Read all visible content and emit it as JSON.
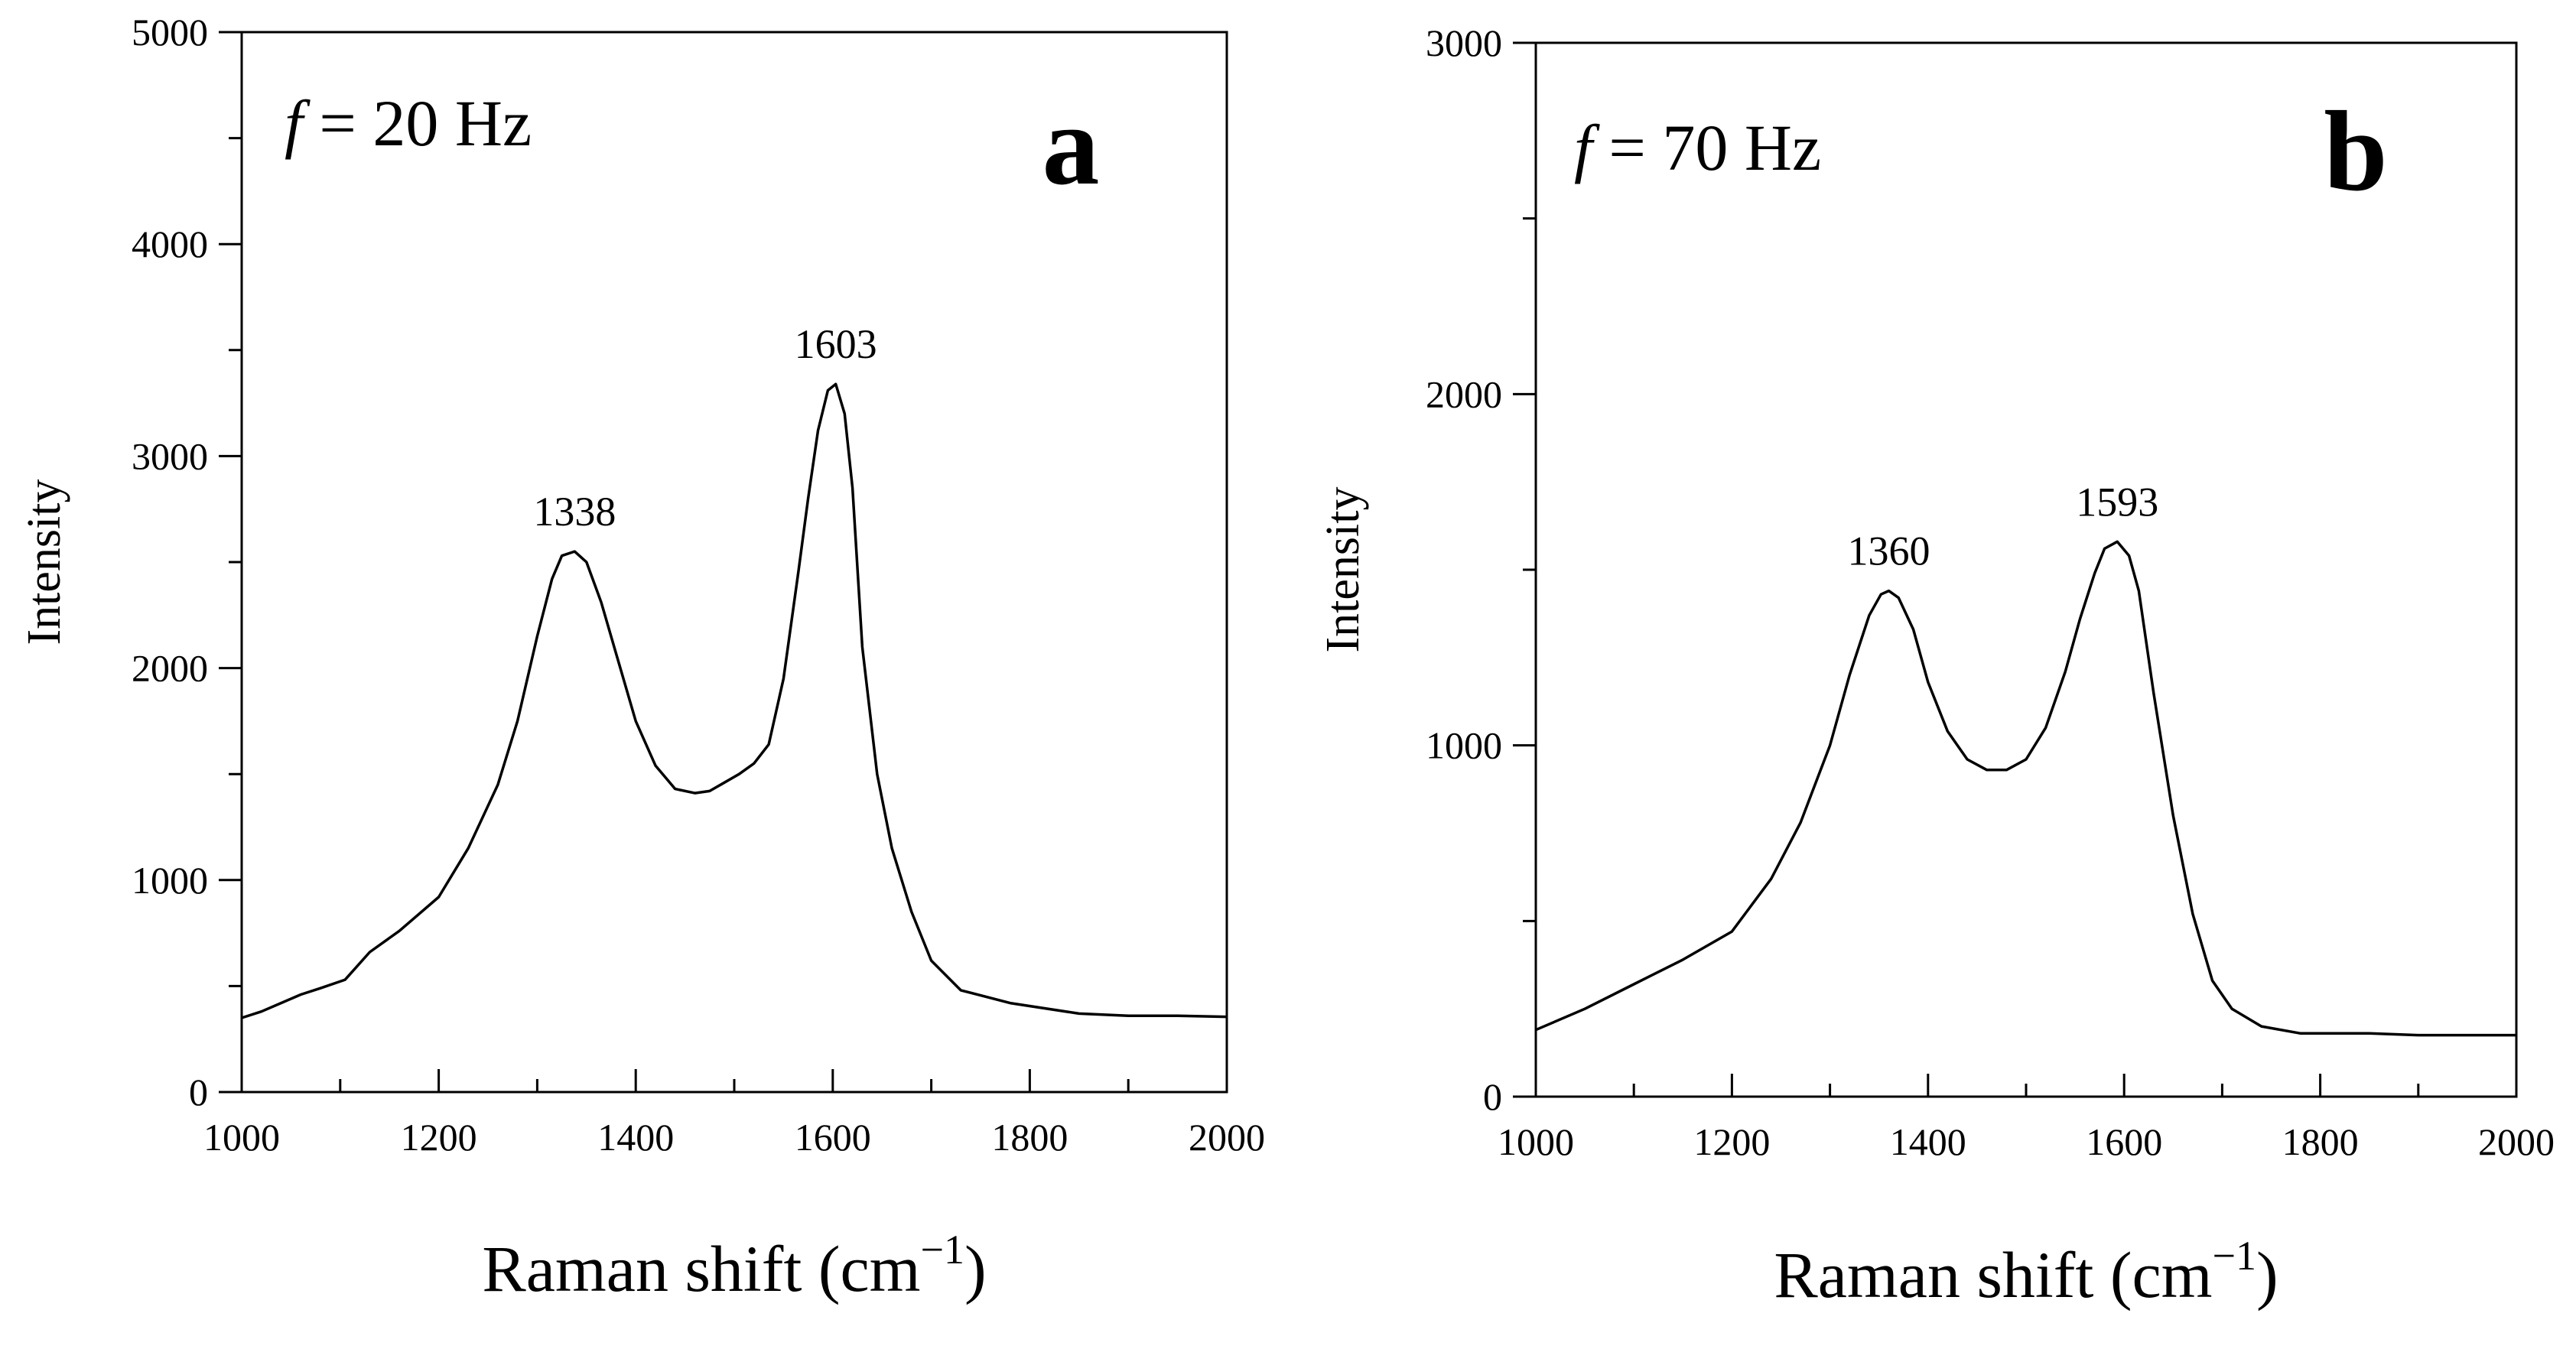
{
  "chart_data": [
    {
      "type": "line",
      "panel": "a",
      "annotation": {
        "italic": "f",
        "rest": " = 20 Hz"
      },
      "xlabel": "Raman shift (cm",
      "xlabel_sup": "−1",
      "xlabel_close": ")",
      "ylabel": "Intensity",
      "xlim": [
        1000,
        2000
      ],
      "ylim": [
        0,
        5000
      ],
      "xticks": [
        1000,
        1200,
        1400,
        1600,
        1800,
        2000
      ],
      "yticks": [
        0,
        1000,
        2000,
        3000,
        4000,
        5000
      ],
      "peaks": [
        {
          "x": 1338,
          "y": 2550,
          "label": "1338"
        },
        {
          "x": 1603,
          "y": 3340,
          "label": "1603"
        }
      ],
      "series": [
        {
          "name": "spectrum",
          "x": [
            1000,
            1020,
            1040,
            1060,
            1080,
            1105,
            1130,
            1160,
            1200,
            1230,
            1260,
            1280,
            1300,
            1315,
            1325,
            1338,
            1350,
            1365,
            1380,
            1400,
            1420,
            1440,
            1460,
            1475,
            1490,
            1505,
            1520,
            1535,
            1550,
            1565,
            1575,
            1585,
            1595,
            1603,
            1612,
            1620,
            1630,
            1645,
            1660,
            1680,
            1700,
            1730,
            1780,
            1850,
            1900,
            1950,
            2000
          ],
          "y": [
            350,
            380,
            420,
            460,
            490,
            530,
            660,
            760,
            920,
            1150,
            1450,
            1750,
            2150,
            2420,
            2530,
            2550,
            2500,
            2310,
            2070,
            1750,
            1540,
            1430,
            1410,
            1420,
            1460,
            1500,
            1550,
            1640,
            1950,
            2450,
            2800,
            3120,
            3310,
            3340,
            3200,
            2850,
            2100,
            1500,
            1150,
            850,
            620,
            480,
            420,
            370,
            360,
            360,
            355
          ]
        }
      ]
    },
    {
      "type": "line",
      "panel": "b",
      "annotation": {
        "italic": "f",
        "rest": " = 70 Hz"
      },
      "xlabel": "Raman shift (cm",
      "xlabel_sup": "−1",
      "xlabel_close": ")",
      "ylabel": "Intensity",
      "xlim": [
        1000,
        2000
      ],
      "ylim": [
        0,
        3000
      ],
      "xticks": [
        1000,
        1200,
        1400,
        1600,
        1800,
        2000
      ],
      "yticks": [
        0,
        1000,
        2000,
        3000
      ],
      "peaks": [
        {
          "x": 1360,
          "y": 1440,
          "label": "1360"
        },
        {
          "x": 1593,
          "y": 1580,
          "label": "1593"
        }
      ],
      "series": [
        {
          "name": "spectrum",
          "x": [
            1000,
            1050,
            1100,
            1150,
            1200,
            1240,
            1270,
            1300,
            1320,
            1340,
            1352,
            1360,
            1370,
            1385,
            1400,
            1420,
            1440,
            1460,
            1480,
            1500,
            1520,
            1540,
            1555,
            1570,
            1580,
            1593,
            1605,
            1615,
            1630,
            1650,
            1670,
            1690,
            1710,
            1740,
            1780,
            1850,
            1900,
            2000
          ],
          "y": [
            190,
            250,
            320,
            390,
            470,
            620,
            780,
            1000,
            1200,
            1370,
            1430,
            1440,
            1420,
            1330,
            1180,
            1040,
            960,
            930,
            930,
            960,
            1050,
            1210,
            1360,
            1490,
            1560,
            1580,
            1540,
            1440,
            1150,
            800,
            520,
            330,
            250,
            200,
            180,
            180,
            175,
            175
          ]
        }
      ]
    }
  ]
}
